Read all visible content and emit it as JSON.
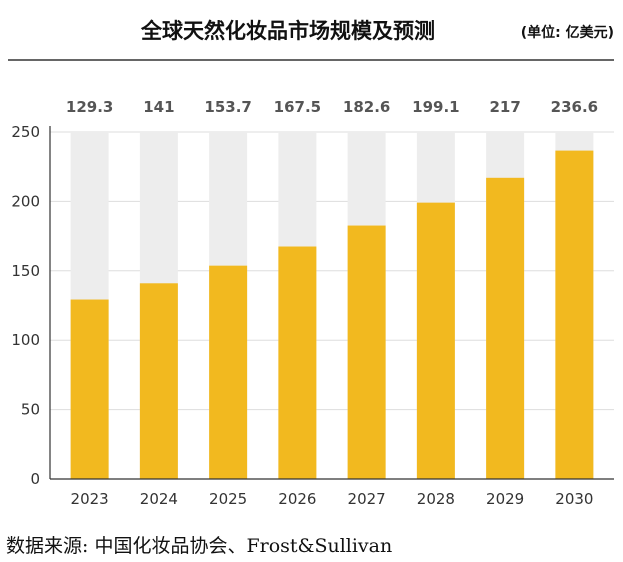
{
  "header": {
    "title": "全球天然化妆品市场规模及预测",
    "unit": "(单位: 亿美元)"
  },
  "footer": {
    "source": "数据来源: 中国化妆品协会、Frost&Sullivan"
  },
  "colors": {
    "bar": "#F2B91F",
    "track": "#EDEDED",
    "grid": "#DDDDDD",
    "axis": "#333333",
    "title_rule": "#333333"
  },
  "chart_data": {
    "type": "bar",
    "title": "全球天然化妆品市场规模及预测",
    "unit": "(单位: 亿美元)",
    "categories": [
      "2023",
      "2024",
      "2025",
      "2026",
      "2027",
      "2028",
      "2029",
      "2030"
    ],
    "values": [
      129.3,
      141,
      153.7,
      167.5,
      182.6,
      199.1,
      217,
      236.6
    ],
    "value_labels": [
      "129.3",
      "141",
      "153.7",
      "167.5",
      "182.6",
      "199.1",
      "217",
      "236.6"
    ],
    "ylim": [
      0,
      250
    ],
    "yticks": [
      0,
      50,
      100,
      150,
      200,
      250
    ],
    "ytick_labels": [
      "0",
      "50",
      "100",
      "150",
      "200",
      "250"
    ],
    "grid": true,
    "legend": "none",
    "background_track_max": 250
  }
}
